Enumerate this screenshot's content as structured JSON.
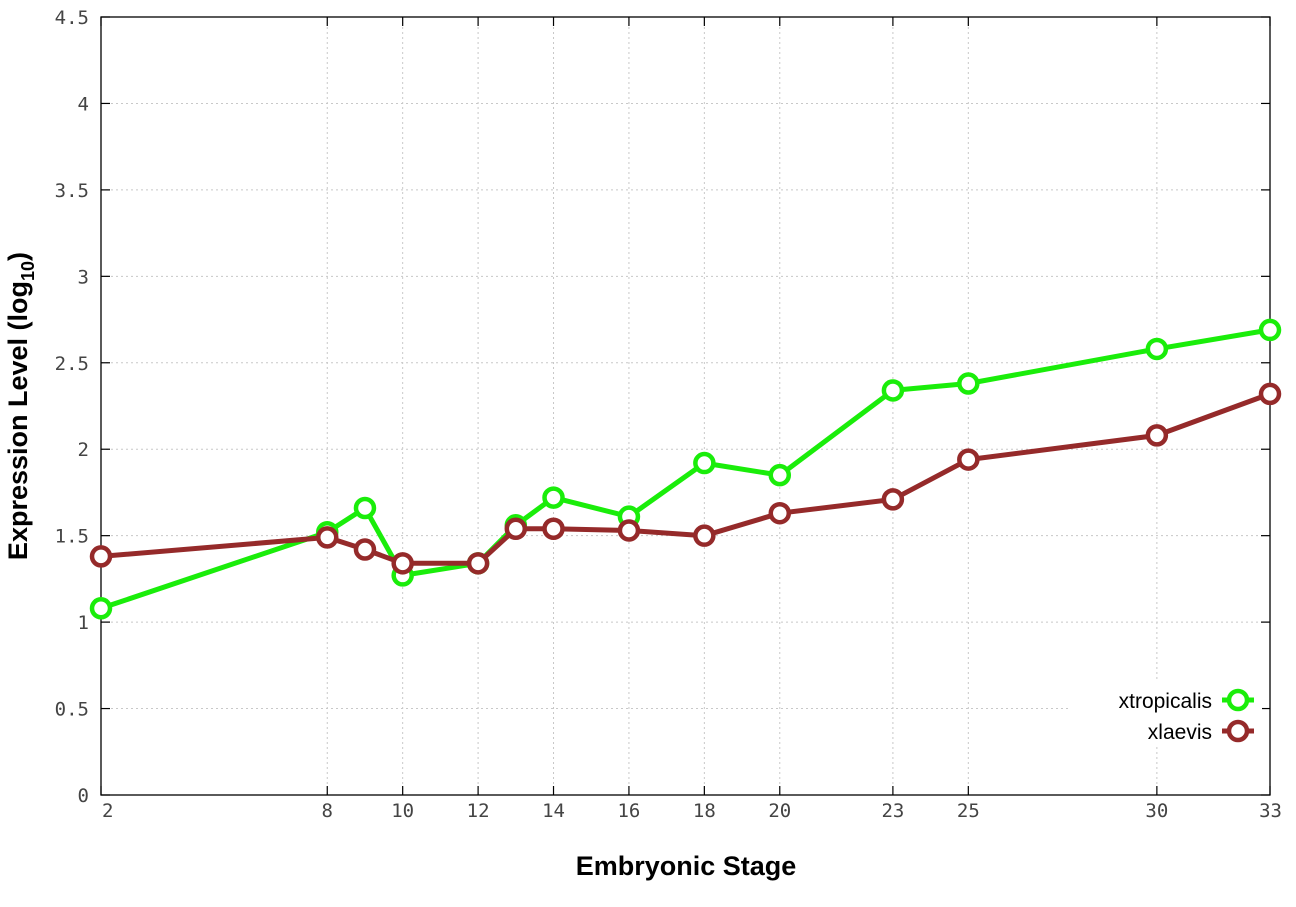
{
  "chart_data": {
    "type": "line",
    "xlabel": "Embryonic Stage",
    "ylabel": "Expression Level (log",
    "ylabel_sub": "10",
    "ylabel_close": ")",
    "x_ticks": [
      "2",
      "8",
      "10",
      "12",
      "14",
      "16",
      "18",
      "20",
      "23",
      "25",
      "30",
      "33"
    ],
    "y_ticks": [
      "0",
      "0.5",
      "1",
      "1.5",
      "2",
      "2.5",
      "3",
      "3.5",
      "4",
      "4.5"
    ],
    "ylim": [
      0,
      4.5
    ],
    "grid": true,
    "legend_position": "bottom-right",
    "series": [
      {
        "name": "xtropicalis",
        "color": "#1aed0a",
        "x": [
          "2",
          "8",
          "9",
          "10",
          "12",
          "13",
          "14",
          "16",
          "18",
          "20",
          "23",
          "25",
          "30",
          "33"
        ],
        "values": [
          1.08,
          1.52,
          1.66,
          1.27,
          1.34,
          1.56,
          1.72,
          1.61,
          1.92,
          1.85,
          2.34,
          2.38,
          2.58,
          2.69
        ]
      },
      {
        "name": "xlaevis",
        "color": "#952a2a",
        "x": [
          "2",
          "8",
          "9",
          "10",
          "12",
          "13",
          "14",
          "16",
          "18",
          "20",
          "23",
          "25",
          "30",
          "33"
        ],
        "values": [
          1.38,
          1.49,
          1.42,
          1.34,
          1.34,
          1.54,
          1.54,
          1.53,
          1.5,
          1.63,
          1.71,
          1.94,
          2.08,
          2.32
        ]
      }
    ]
  }
}
